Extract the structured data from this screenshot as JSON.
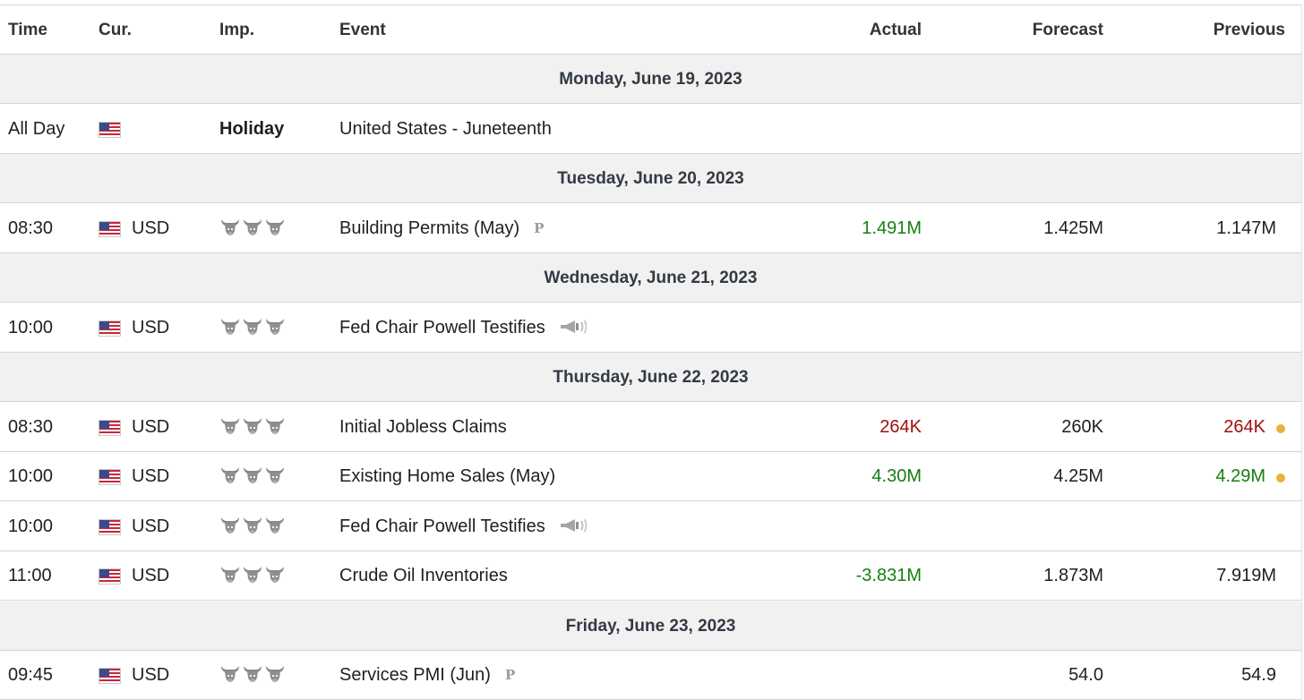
{
  "colors": {
    "positive": "#157f12",
    "negative": "#a40d0d",
    "neutral": "#1f1f1f",
    "revision_dot": "#e8b23b",
    "day_bg": "#f1f1f1"
  },
  "headers": {
    "time": "Time",
    "cur": "Cur.",
    "imp": "Imp.",
    "event": "Event",
    "actual": "Actual",
    "forecast": "Forecast",
    "previous": "Previous"
  },
  "days": [
    {
      "label": "Monday, June 19, 2023",
      "events": [
        {
          "time": "All Day",
          "currency": "",
          "importance": "Holiday",
          "event": "United States - Juneteenth",
          "actual": "",
          "forecast": "",
          "previous": ""
        }
      ]
    },
    {
      "label": "Tuesday, June 20, 2023",
      "events": [
        {
          "time": "08:30",
          "currency": "USD",
          "importance": 3,
          "event": "Building Permits (May)",
          "badge": "P",
          "actual": "1.491M",
          "actual_trend": "positive",
          "forecast": "1.425M",
          "previous": "1.147M"
        }
      ]
    },
    {
      "label": "Wednesday, June 21, 2023",
      "events": [
        {
          "time": "10:00",
          "currency": "USD",
          "importance": 3,
          "event": "Fed Chair Powell Testifies",
          "icon": "speaker-icon",
          "actual": "",
          "forecast": "",
          "previous": ""
        }
      ]
    },
    {
      "label": "Thursday, June 22, 2023",
      "events": [
        {
          "time": "08:30",
          "currency": "USD",
          "importance": 3,
          "event": "Initial Jobless Claims",
          "actual": "264K",
          "actual_trend": "negative",
          "forecast": "260K",
          "previous": "264K",
          "previous_trend": "negative",
          "previous_revised": true
        },
        {
          "time": "10:00",
          "currency": "USD",
          "importance": 3,
          "event": "Existing Home Sales (May)",
          "actual": "4.30M",
          "actual_trend": "positive",
          "forecast": "4.25M",
          "previous": "4.29M",
          "previous_trend": "positive",
          "previous_revised": true
        },
        {
          "time": "10:00",
          "currency": "USD",
          "importance": 3,
          "event": "Fed Chair Powell Testifies",
          "icon": "speaker-icon",
          "actual": "",
          "forecast": "",
          "previous": ""
        },
        {
          "time": "11:00",
          "currency": "USD",
          "importance": 3,
          "event": "Crude Oil Inventories",
          "actual": "-3.831M",
          "actual_trend": "positive",
          "forecast": "1.873M",
          "previous": "7.919M"
        }
      ]
    },
    {
      "label": "Friday, June 23, 2023",
      "events": [
        {
          "time": "09:45",
          "currency": "USD",
          "importance": 3,
          "event": "Services PMI (Jun)",
          "badge": "P",
          "actual": "",
          "forecast": "54.0",
          "previous": "54.9"
        }
      ]
    }
  ]
}
